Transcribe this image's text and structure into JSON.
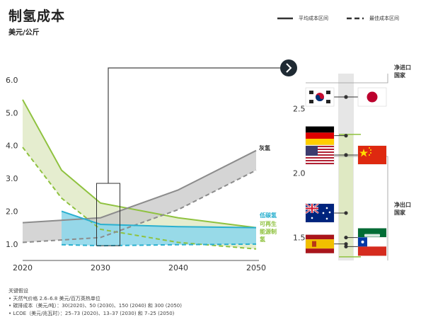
{
  "header": {
    "title": "制氢成本",
    "subtitle": "美元/公斤"
  },
  "legend": {
    "average": "平均成本区间",
    "best": "最佳成本区间"
  },
  "colors": {
    "grey": "#8c8c8c",
    "green": "#8fc23f",
    "green_fill": "#dfe9c3",
    "blue": "#2ab0cf",
    "blue_fill": "#8fd7ea",
    "grey_fill": "#c7c7c7",
    "dark": "#333333"
  },
  "chart_data": [
    {
      "type": "area",
      "ylim": [
        0.5,
        6.0
      ],
      "xlim": [
        2020,
        2050
      ],
      "yticks": [
        1.0,
        2.0,
        3.0,
        4.0,
        5.0,
        6.0
      ],
      "ytick_labels": [
        "1.0",
        "2.0",
        "3.0",
        "4.0",
        "5.0",
        "6.0"
      ],
      "xticks": [
        2020,
        2030,
        2040,
        2050
      ],
      "xtick_labels": [
        "2020",
        "2030",
        "2040",
        "2050"
      ],
      "series": [
        {
          "name": "灰氢",
          "color_key": "grey",
          "average": {
            "x": [
              2020,
              2030,
              2040,
              2050
            ],
            "y": [
              1.65,
              1.8,
              2.65,
              3.85
            ]
          },
          "best": {
            "x": [
              2020,
              2030,
              2040,
              2050
            ],
            "y": [
              1.05,
              1.2,
              2.05,
              3.25
            ]
          }
        },
        {
          "name": "低碳氢",
          "color_key": "blue",
          "average": {
            "x": [
              2025,
              2030,
              2040,
              2050
            ],
            "y": [
              2.0,
              1.6,
              1.53,
              1.5
            ]
          },
          "best": {
            "x": [
              2025,
              2030,
              2040,
              2050
            ],
            "y": [
              0.98,
              0.95,
              0.98,
              1.0
            ]
          }
        },
        {
          "name": "可再生能源制氢",
          "color_key": "green",
          "average": {
            "x": [
              2020,
              2025,
              2030,
              2040,
              2050
            ],
            "y": [
              5.4,
              3.25,
              2.25,
              1.8,
              1.5
            ]
          },
          "best": {
            "x": [
              2020,
              2025,
              2030,
              2040,
              2050
            ],
            "y": [
              3.95,
              2.4,
              1.45,
              1.05,
              0.85
            ]
          }
        }
      ],
      "series_labels": [
        "灰氢",
        "低碳氢",
        "可再生",
        "能源制",
        "氢"
      ],
      "highlight_box": {
        "x": [
          2029.5,
          2032.5
        ],
        "y": [
          0.95,
          2.85
        ]
      }
    },
    {
      "type": "scatter",
      "ylim": [
        1.3,
        2.7
      ],
      "yticks": [
        1.5,
        2.0,
        2.5
      ],
      "ytick_labels": [
        "1.5",
        "2.0",
        "2.5"
      ],
      "regions": [
        "净进口\n国家",
        "净出口\n国家"
      ],
      "region_labels": [
        "净进口",
        "国家",
        "净出口",
        "国家"
      ],
      "countries": [
        {
          "name": "South Korea",
          "flag": "kr-flag",
          "side": "left",
          "y": 2.59
        },
        {
          "name": "Japan",
          "flag": "jp-flag",
          "side": "right",
          "y": 2.59
        },
        {
          "name": "Germany",
          "flag": "de-flag",
          "side": "left",
          "y": 2.29
        },
        {
          "name": "United States",
          "flag": "us-flag",
          "side": "left",
          "y": 2.14
        },
        {
          "name": "China",
          "flag": "cn-flag",
          "side": "right",
          "y": 2.14
        },
        {
          "name": "Australia",
          "flag": "au-flag",
          "side": "left",
          "y": 1.69
        },
        {
          "name": "Saudi Arabia",
          "flag": "sa-flag",
          "side": "right",
          "y": 1.5
        },
        {
          "name": "Spain",
          "flag": "es-flag",
          "side": "left",
          "y": 1.45
        },
        {
          "name": "Chile",
          "flag": "cl-flag",
          "side": "right",
          "y": 1.43
        }
      ]
    }
  ],
  "notes": {
    "heading": "关键假设",
    "lines": [
      "• 天然气价格 2.6–6.8 美元/百万英热单位",
      "• 碳排成本（美元/吨）：30(2020)、50 (2030)、150 (2040) 和 300 (2050)",
      "• LCOE（美元/兆瓦时）：25–73 (2020)、13–37 (2030) 和 7–25 (2050)"
    ]
  }
}
